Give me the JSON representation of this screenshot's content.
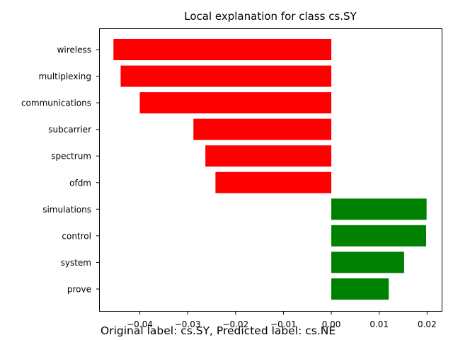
{
  "chart_data": {
    "type": "bar",
    "orientation": "horizontal",
    "title": "Local explanation for class cs.SY",
    "caption": "Original label: cs.SY, Predicted label: cs.NE",
    "xlabel": "",
    "ylabel": "",
    "categories": [
      "wireless",
      "multiplexing",
      "communications",
      "subcarrier",
      "spectrum",
      "ofdm",
      "simulations",
      "control",
      "system",
      "prove"
    ],
    "values": [
      -0.0455,
      -0.044,
      -0.04,
      -0.0288,
      -0.0263,
      -0.0242,
      0.0199,
      0.0198,
      0.0152,
      0.012
    ],
    "xlim": [
      -0.0485,
      0.0232
    ],
    "xticks": [
      -0.04,
      -0.03,
      -0.02,
      -0.01,
      0.0,
      0.01,
      0.02
    ],
    "xtick_labels": [
      "−0.04",
      "−0.03",
      "−0.02",
      "−0.01",
      "0.00",
      "0.01",
      "0.02"
    ],
    "grid": false,
    "colors": {
      "negative": "#ff0000",
      "positive": "#008000"
    }
  }
}
